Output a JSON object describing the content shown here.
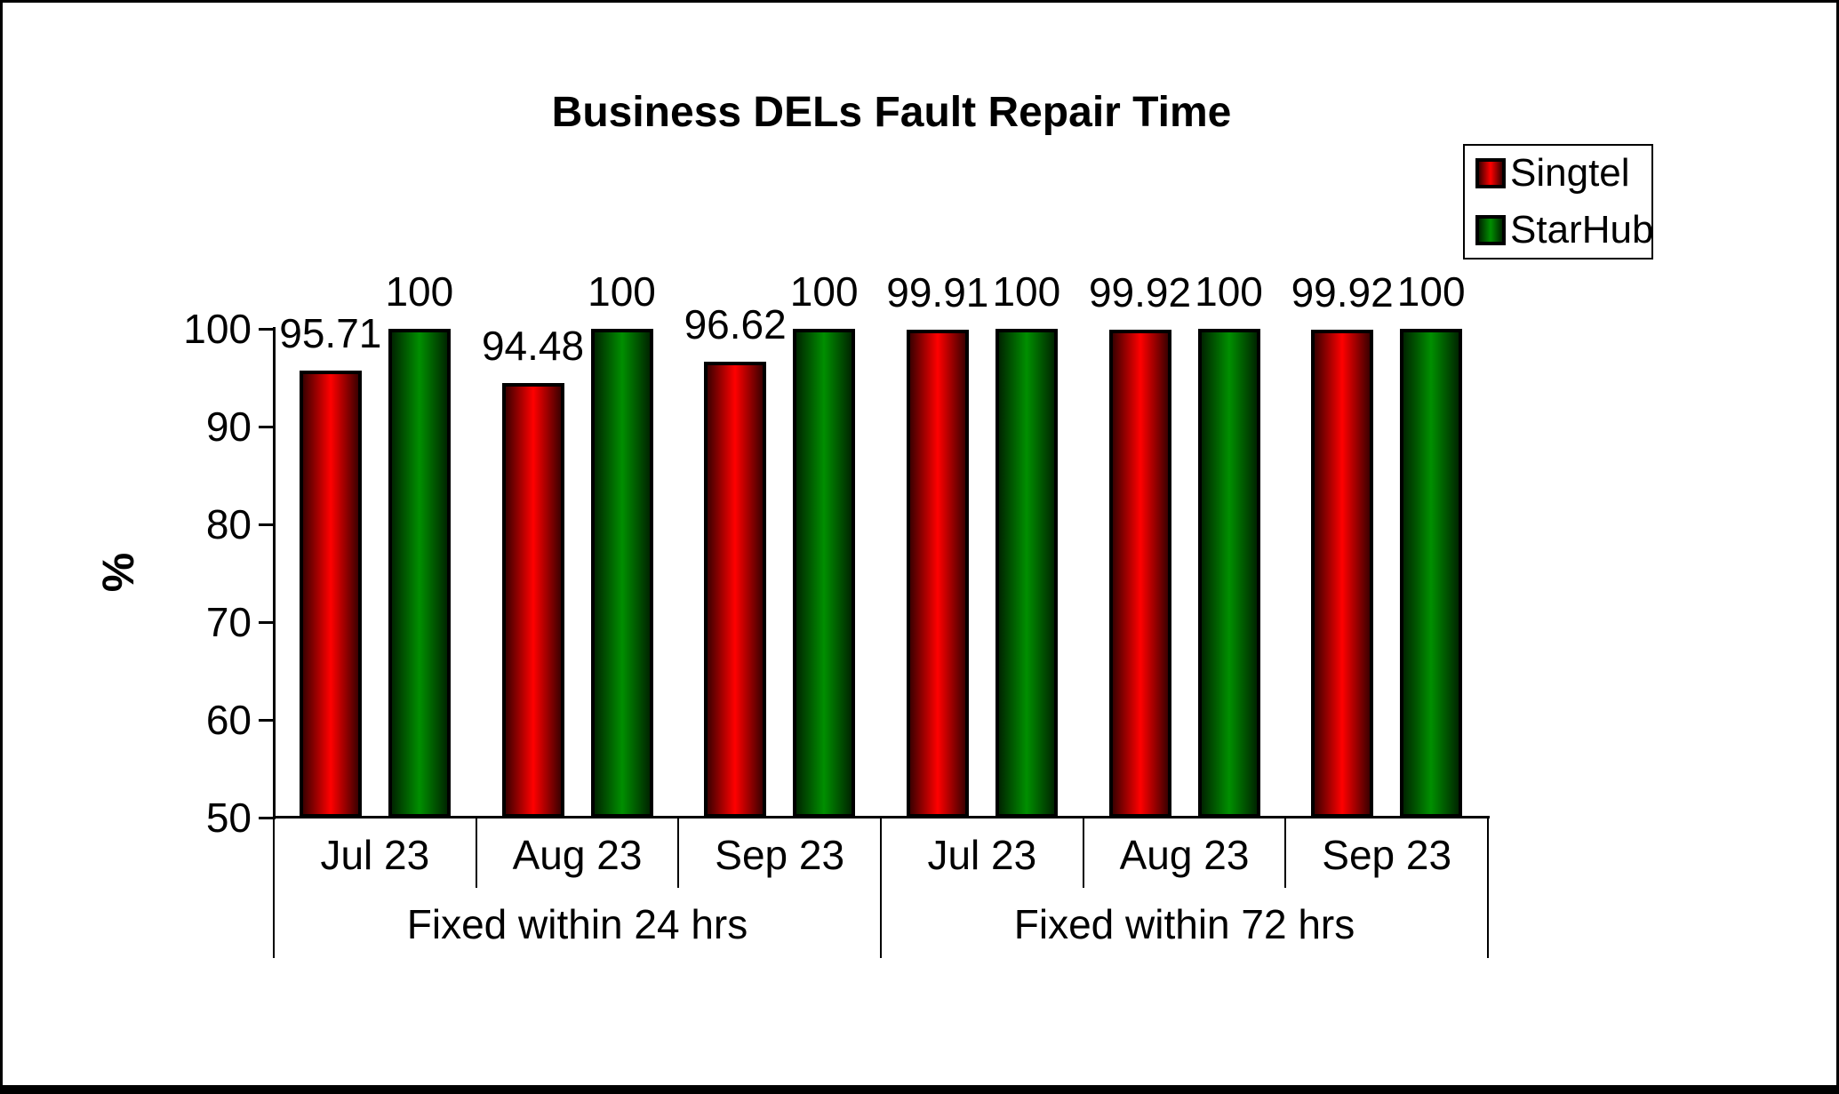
{
  "title": "Business DELs Fault Repair Time",
  "chart_data": {
    "type": "bar",
    "title": "Business DELs Fault Repair Time",
    "xlabel": "",
    "ylabel": "%",
    "ylim": [
      50,
      100
    ],
    "yticks": [
      50,
      60,
      70,
      80,
      90,
      100
    ],
    "grid": false,
    "legend_position": "top-right",
    "groups": [
      {
        "label": "Fixed within 24 hrs",
        "months": [
          "Jul 23",
          "Aug 23",
          "Sep 23"
        ]
      },
      {
        "label": "Fixed within 72 hrs",
        "months": [
          "Jul 23",
          "Aug 23",
          "Sep 23"
        ]
      }
    ],
    "categories": [
      "Jul 23",
      "Aug 23",
      "Sep 23",
      "Jul 23",
      "Aug 23",
      "Sep 23"
    ],
    "series": [
      {
        "name": "Singtel",
        "color": "#ff0000",
        "edge_color": "#3c0000",
        "values": [
          95.71,
          94.48,
          96.62,
          99.91,
          99.92,
          99.92
        ],
        "data_labels": [
          "95.71",
          "94.48",
          "96.62",
          "99.91",
          "99.92",
          "99.92"
        ]
      },
      {
        "name": "StarHub",
        "color": "#008f00",
        "edge_color": "#002600",
        "values": [
          100,
          100,
          100,
          100,
          100,
          100
        ],
        "data_labels": [
          "100",
          "100",
          "100",
          "100",
          "100",
          "100"
        ]
      }
    ]
  },
  "colors": {
    "background": "#ffffff",
    "frame": "#000000",
    "text": "#000000"
  }
}
